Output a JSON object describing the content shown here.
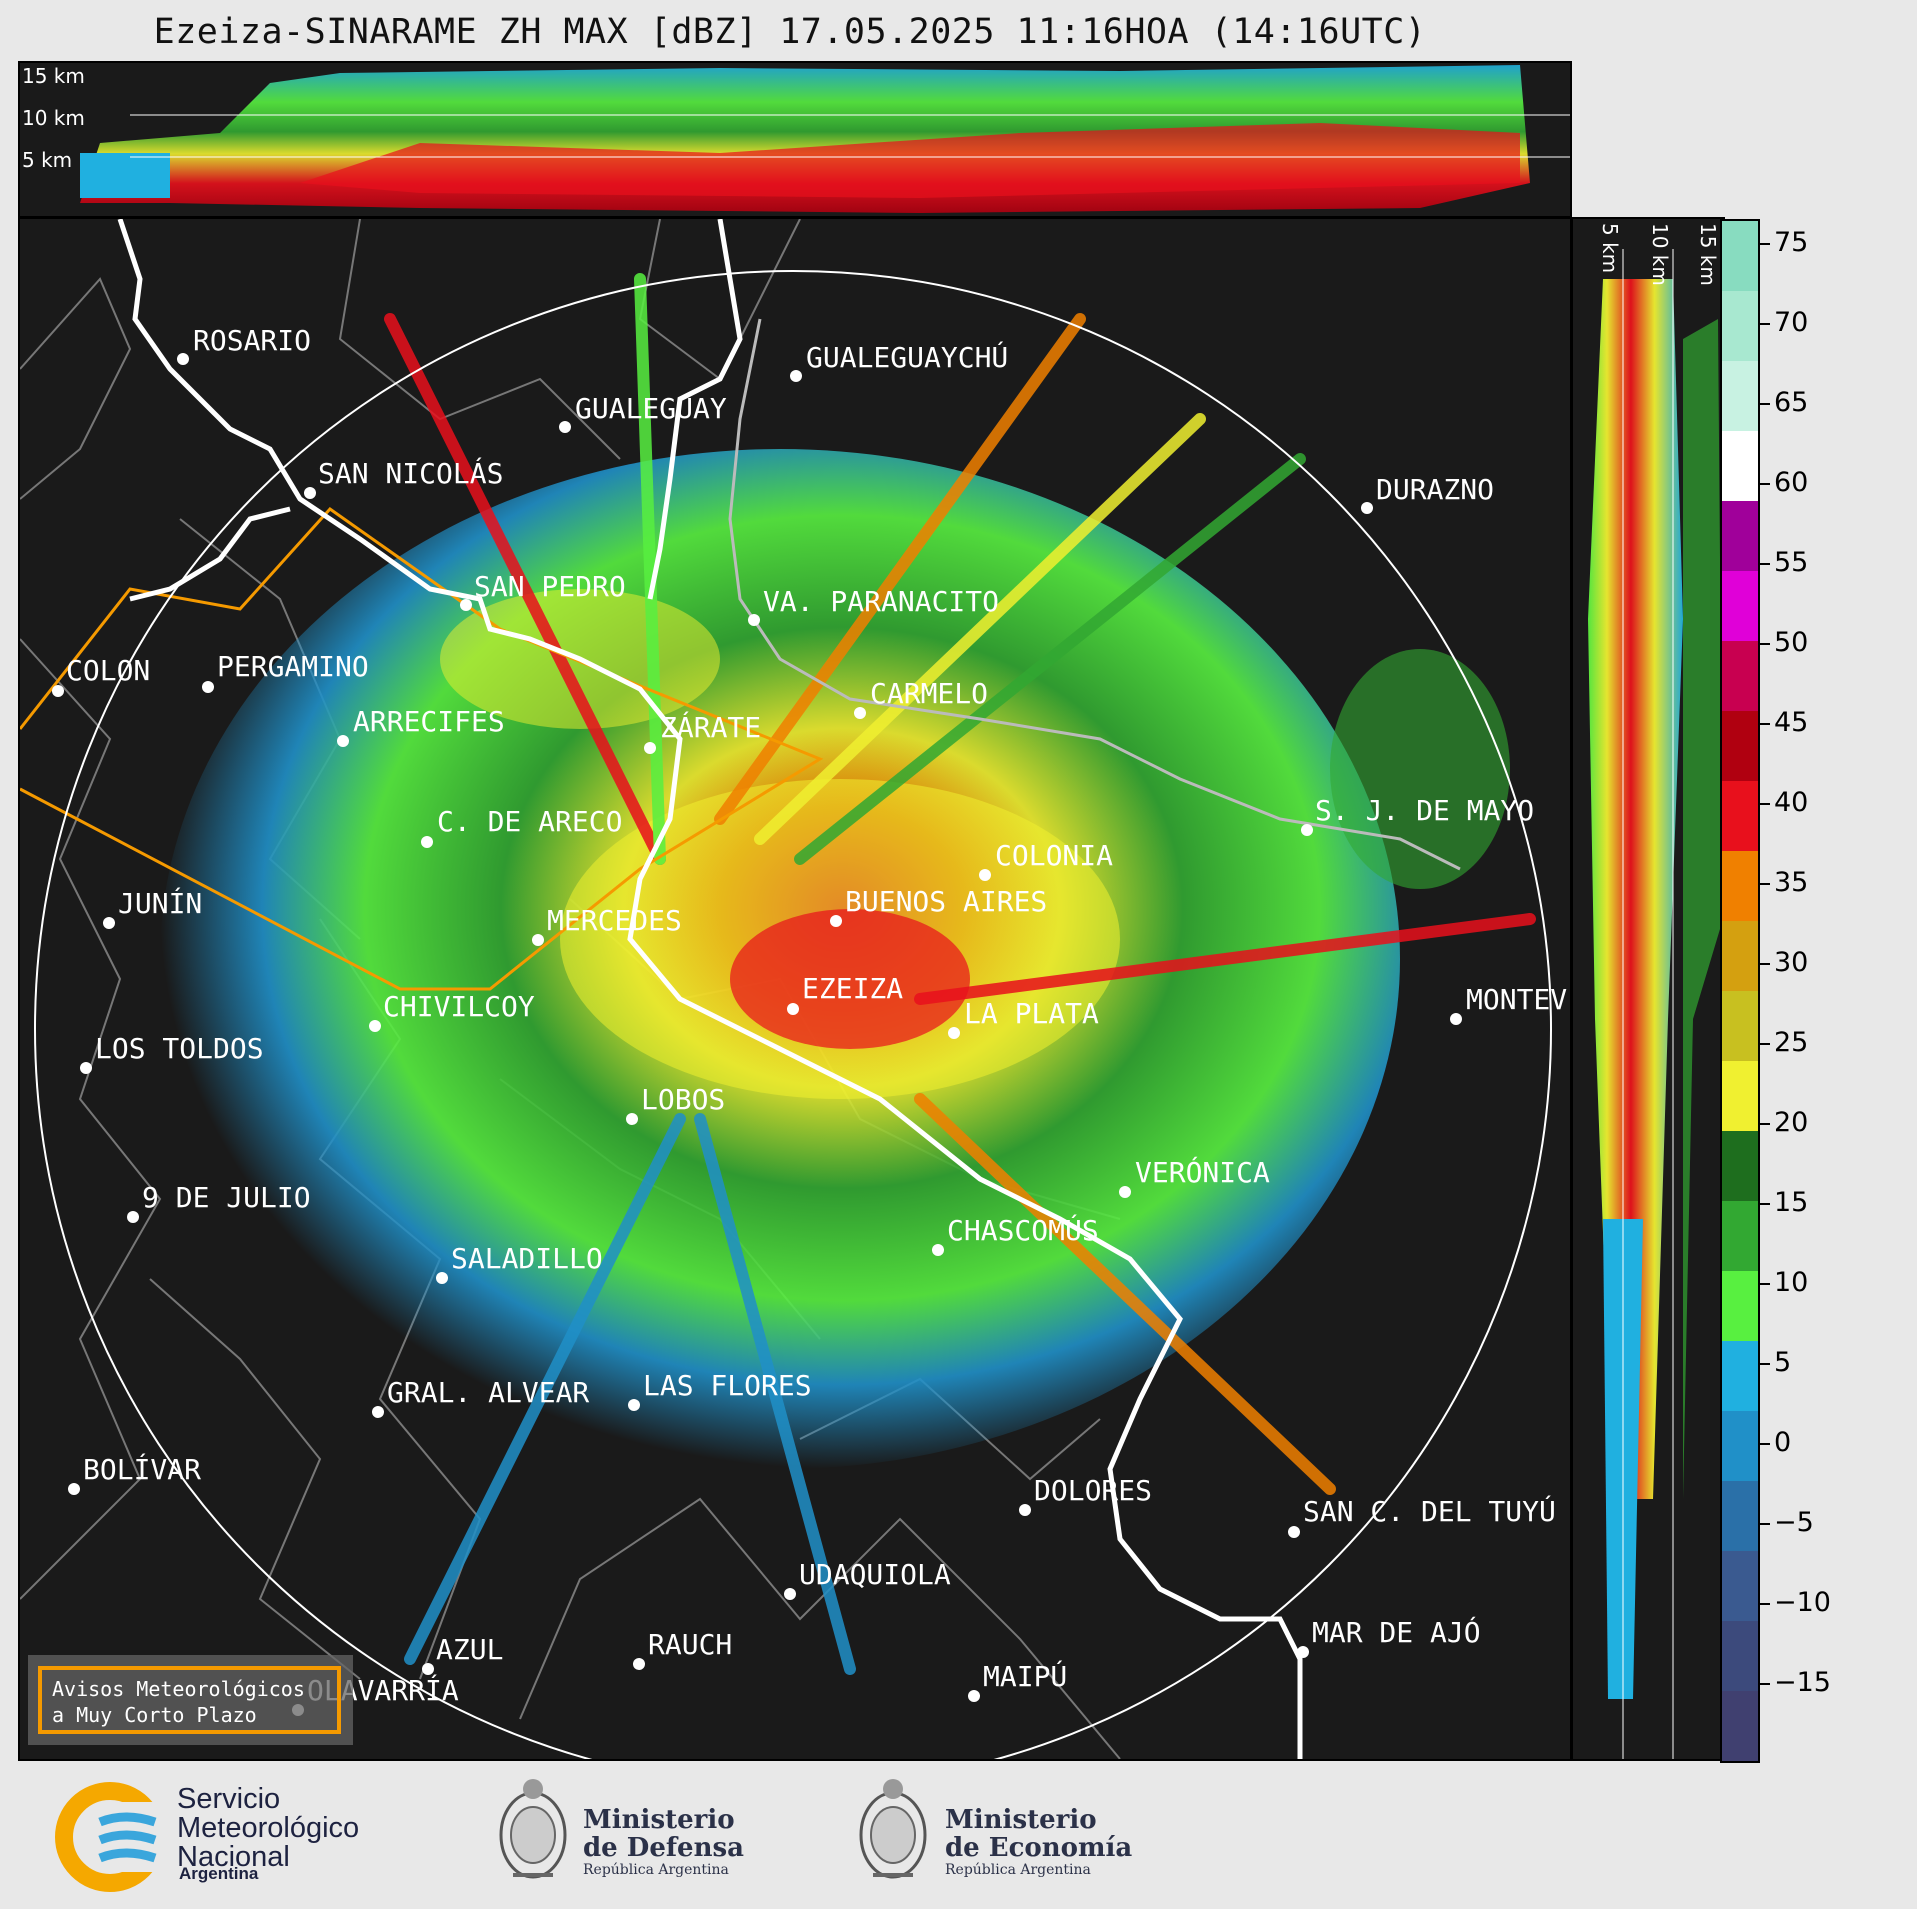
{
  "title": "Ezeiza-SINARAME ZH MAX [dBZ] 17.05.2025 11:16HOA (14:16UTC)",
  "top_panel": {
    "altitudes": [
      "15 km",
      "10 km",
      "5 km"
    ]
  },
  "side_panel": {
    "altitudes": [
      "5 km",
      "10 km",
      "15 km"
    ]
  },
  "colorbar": {
    "ticks": [
      "75",
      "70",
      "65",
      "60",
      "55",
      "50",
      "45",
      "40",
      "35",
      "30",
      "25",
      "20",
      "15",
      "10",
      "5",
      "0",
      "−5",
      "−10",
      "−15"
    ],
    "colors": [
      "#88dcc0",
      "#a8e8d0",
      "#c8f2e2",
      "#ffffff",
      "#a0009a",
      "#e000d8",
      "#c80050",
      "#b00010",
      "#e8101c",
      "#f08000",
      "#d4a010",
      "#c8c020",
      "#f0f030",
      "#1e6e1e",
      "#32a832",
      "#58f040",
      "#20b0e0",
      "#2090c8",
      "#2a70a8",
      "#3a5a90",
      "#3c4a7c",
      "#404070"
    ]
  },
  "cities": [
    {
      "name": "ROSARIO"
    },
    {
      "name": "GUALEGUAYCHÚ"
    },
    {
      "name": "GUALEGUAY"
    },
    {
      "name": "SAN NICOLÁS"
    },
    {
      "name": "DURAZNO"
    },
    {
      "name": "SAN PEDRO"
    },
    {
      "name": "VA. PARANACITO"
    },
    {
      "name": "COLON"
    },
    {
      "name": "PERGAMINO"
    },
    {
      "name": "CARMELO"
    },
    {
      "name": "ARRECIFES"
    },
    {
      "name": "ZÁRATE"
    },
    {
      "name": "C. DE ARECO"
    },
    {
      "name": "S. J. DE MAYO"
    },
    {
      "name": "COLONIA"
    },
    {
      "name": "JUNÍN"
    },
    {
      "name": "BUENOS AIRES"
    },
    {
      "name": "MERCEDES"
    },
    {
      "name": "MONTEV"
    },
    {
      "name": "EZEIZA"
    },
    {
      "name": "CHIVILCOY"
    },
    {
      "name": "LA PLATA"
    },
    {
      "name": "LOS TOLDOS"
    },
    {
      "name": "LOBOS"
    },
    {
      "name": "VERÓNICA"
    },
    {
      "name": "9 DE JULIO"
    },
    {
      "name": "CHASCOMÚS"
    },
    {
      "name": "SALADILLO"
    },
    {
      "name": "GRAL. ALVEAR"
    },
    {
      "name": "LAS FLORES"
    },
    {
      "name": "BOLÍVAR"
    },
    {
      "name": "DOLORES"
    },
    {
      "name": "SAN C. DEL TUYÚ"
    },
    {
      "name": "UDAQUIOLA"
    },
    {
      "name": "AZUL"
    },
    {
      "name": "RAUCH"
    },
    {
      "name": "MAR DE AJÓ"
    },
    {
      "name": "OLAVARRÍA"
    },
    {
      "name": "MAIPÚ"
    }
  ],
  "warning_box": {
    "line1": "Avisos Meteorológicos",
    "line2": "a Muy Corto Plazo"
  },
  "logos": {
    "smn": {
      "line1": "Servicio",
      "line2": "Meteorológico",
      "line3": "Nacional",
      "sub": "Argentina"
    },
    "defensa": {
      "line1": "Ministerio",
      "line2": "de Defensa",
      "sub": "República Argentina"
    },
    "economia": {
      "line1": "Ministerio",
      "line2": "de Economía",
      "sub": "República Argentina"
    }
  }
}
